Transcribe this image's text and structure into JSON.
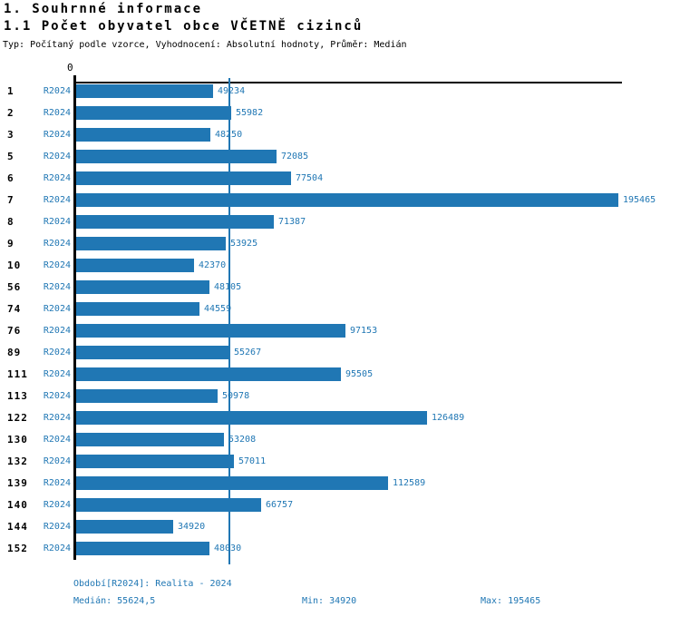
{
  "header": {
    "title1": "1. Souhrnné informace",
    "title2": "1.1 Počet obyvatel obce VČETNĚ cizinců",
    "subtitle": "Typ: Počítaný podle vzorce, Vyhodnocení: Absolutní hodnoty, Průměr: Medián"
  },
  "chart_data": {
    "type": "bar",
    "orientation": "horizontal",
    "title": "1.1 Počet obyvatel obce VČETNĚ cizinců",
    "zero_label": "0",
    "categories": [
      "1",
      "2",
      "3",
      "5",
      "6",
      "7",
      "8",
      "9",
      "10",
      "56",
      "74",
      "76",
      "89",
      "111",
      "113",
      "122",
      "130",
      "132",
      "139",
      "140",
      "144",
      "152"
    ],
    "series": [
      {
        "name": "R2024",
        "values": [
          49234,
          55982,
          48250,
          72085,
          77504,
          195465,
          71387,
          53925,
          42370,
          48105,
          44559,
          97153,
          55267,
          95505,
          50978,
          126489,
          53208,
          57011,
          112589,
          66757,
          34920,
          48030
        ]
      }
    ],
    "xlim": [
      0,
      195465
    ],
    "median": 55624.5,
    "min": 34920,
    "max": 195465,
    "bar_color": "#2077b4",
    "median_line_color": "#2077b4",
    "grid": false,
    "legend_position": "none"
  },
  "footer": {
    "period_info": "Období[R2024]: Realita - 2024",
    "median_label": "Medián: 55624,5",
    "min_label": "Min: 34920",
    "max_label": "Max: 195465"
  },
  "colors": {
    "accent": "#2077b4",
    "text": "#000000",
    "background": "#ffffff"
  }
}
